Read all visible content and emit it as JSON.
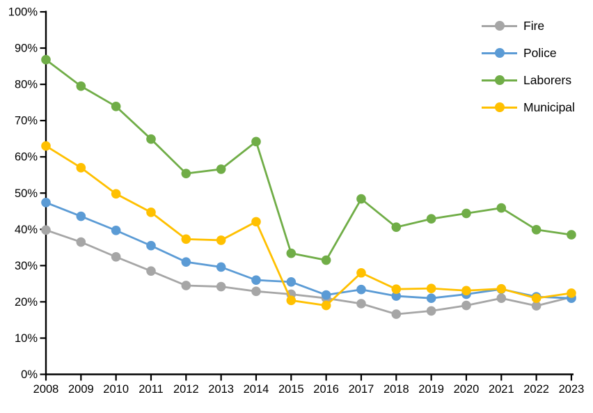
{
  "chart_data": {
    "type": "line",
    "title": "",
    "xlabel": "",
    "ylabel": "",
    "background": "#FFFFFF",
    "axis_color": "#000000",
    "grid": false,
    "marker": "circle",
    "legend_position": "top-right",
    "ylim": [
      0,
      100
    ],
    "y_tick_step": 10,
    "y_tick_labels": [
      "0%",
      "10%",
      "20%",
      "30%",
      "40%",
      "50%",
      "60%",
      "70%",
      "80%",
      "90%",
      "100%"
    ],
    "x": [
      2008,
      2009,
      2010,
      2011,
      2012,
      2013,
      2014,
      2015,
      2016,
      2017,
      2018,
      2019,
      2020,
      2021,
      2022,
      2023
    ],
    "series": [
      {
        "name": "Fire",
        "color": "#A6A6A6",
        "values": [
          39.8,
          36.5,
          32.4,
          28.5,
          24.5,
          24.2,
          22.9,
          22.1,
          21.0,
          19.5,
          16.6,
          17.5,
          19.0,
          21.0,
          18.9,
          21.3
        ]
      },
      {
        "name": "Police",
        "color": "#5B9BD5",
        "values": [
          47.4,
          43.6,
          39.7,
          35.5,
          31.0,
          29.6,
          26.0,
          25.5,
          21.9,
          23.4,
          21.6,
          21.0,
          22.1,
          23.5,
          21.4,
          21.0
        ]
      },
      {
        "name": "Laborers",
        "color": "#70AD47",
        "values": [
          86.8,
          79.5,
          73.9,
          64.9,
          55.4,
          56.6,
          64.2,
          33.4,
          31.5,
          48.4,
          40.6,
          42.9,
          44.4,
          45.9,
          39.9,
          38.5
        ]
      },
      {
        "name": "Municipal",
        "color": "#FFC000",
        "values": [
          63.0,
          57.0,
          49.8,
          44.7,
          37.3,
          37.0,
          42.1,
          20.4,
          19.0,
          28.0,
          23.5,
          23.7,
          23.1,
          23.6,
          21.0,
          22.4
        ]
      }
    ]
  }
}
